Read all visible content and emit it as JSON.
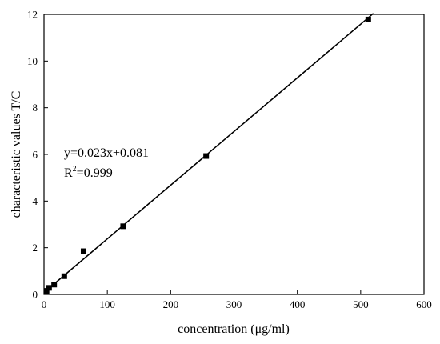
{
  "chart_data": {
    "type": "scatter",
    "title": "",
    "xlabel": "concentration (μg/ml)",
    "ylabel": "characteristic values T/C",
    "xlim": [
      0,
      600
    ],
    "ylim": [
      0,
      12
    ],
    "x_ticks": [
      0,
      100,
      200,
      300,
      400,
      500,
      600
    ],
    "y_ticks": [
      0,
      2,
      4,
      6,
      8,
      10,
      12
    ],
    "grid": false,
    "legend": "none",
    "series": [
      {
        "marker": "square",
        "color": "#000000",
        "points": [
          {
            "x": 4,
            "y": 0.15
          },
          {
            "x": 8,
            "y": 0.28
          },
          {
            "x": 16,
            "y": 0.42
          },
          {
            "x": 32,
            "y": 0.78
          },
          {
            "x": 62.5,
            "y": 1.85
          },
          {
            "x": 125,
            "y": 2.92
          },
          {
            "x": 256,
            "y": 5.93
          },
          {
            "x": 512,
            "y": 11.78
          }
        ]
      }
    ],
    "fit_line": {
      "slope": 0.023,
      "intercept": 0.081,
      "x_range": [
        0,
        520
      ],
      "color": "#000000"
    },
    "annotations": {
      "equation": "y=0.023x+0.081",
      "r2_prefix": "R",
      "r2_sup": "2",
      "r2_suffix": "=0.999"
    }
  }
}
